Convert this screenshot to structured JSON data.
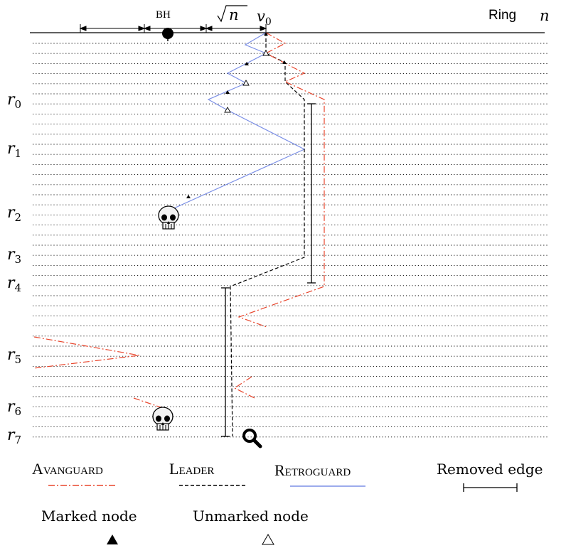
{
  "header": {
    "bh_label": "BH",
    "sqrt_label": "n",
    "v0_base": "v",
    "v0_sub": "0",
    "ring_label": "Ring",
    "n_label": "n"
  },
  "rounds": [
    {
      "base": "r",
      "sub": "0"
    },
    {
      "base": "r",
      "sub": "1"
    },
    {
      "base": "r",
      "sub": "2"
    },
    {
      "base": "r",
      "sub": "3"
    },
    {
      "base": "r",
      "sub": "4"
    },
    {
      "base": "r",
      "sub": "5"
    },
    {
      "base": "r",
      "sub": "6"
    },
    {
      "base": "r",
      "sub": "7"
    }
  ],
  "legend": {
    "avanguard": "Avanguard",
    "leader": "Leader",
    "retroguard": "Retroguard",
    "removed_edge": "Removed edge",
    "marked_node": "Marked node",
    "unmarked_node": "Unmarked node"
  },
  "colors": {
    "avanguard": "#e8452c",
    "leader": "#000000",
    "retroguard": "#7b8fe6"
  },
  "icons": [
    "skull-icon",
    "magnifier-icon",
    "marked-node-icon",
    "unmarked-node-icon",
    "black-hole-icon"
  ]
}
